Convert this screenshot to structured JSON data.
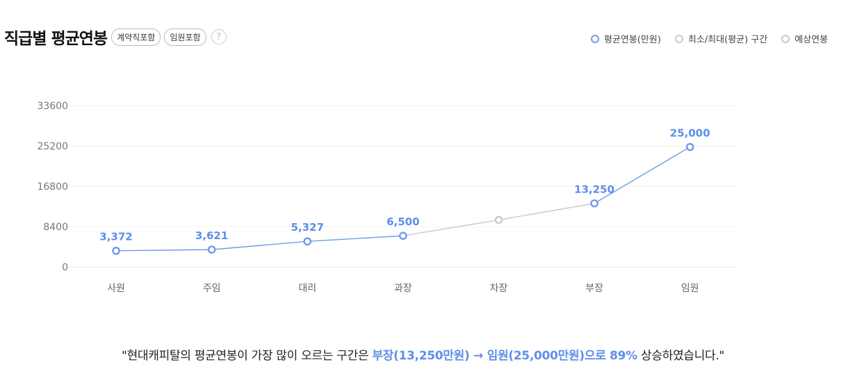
{
  "header": {
    "title": "직급별 평균연봉",
    "tags": [
      "계약직포함",
      "임원포함"
    ],
    "help": "?"
  },
  "legend": {
    "items": [
      "평균연봉(만원)",
      "최소/최대(평균) 구간",
      "예상연봉"
    ]
  },
  "colors": {
    "primary": "#6f9be8",
    "estimate": "#c8c8c8",
    "label": "#5f8eea"
  },
  "chart_data": {
    "type": "line",
    "categories": [
      "사원",
      "주임",
      "대리",
      "과장",
      "차장",
      "부장",
      "임원"
    ],
    "y_ticks": [
      "33600",
      "25200",
      "16800",
      "8400",
      "0"
    ],
    "ylim": [
      0,
      33600
    ],
    "grid": true,
    "series": [
      {
        "name": "평균연봉(만원)",
        "values": [
          3372,
          3621,
          5327,
          6500,
          null,
          13250,
          25000
        ],
        "labels": [
          "3,372",
          "3,621",
          "5,327",
          "6,500",
          "",
          "13,250",
          "25,000"
        ]
      },
      {
        "name": "예상연봉",
        "values": [
          null,
          null,
          null,
          6500,
          9800,
          13250,
          null
        ]
      }
    ]
  },
  "summary": {
    "prefix": "\"현대캐피탈의 평균연봉이 가장 많이 오르는 구간은 ",
    "highlight": "부장(13,250만원) → 임원(25,000만원)으로 89%",
    "suffix": " 상승하였습니다.\""
  }
}
